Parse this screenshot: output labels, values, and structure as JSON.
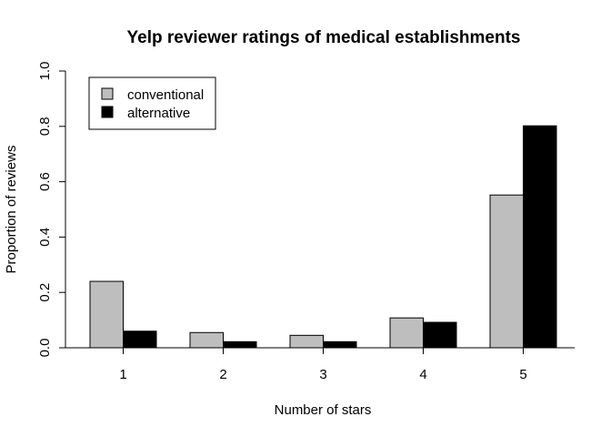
{
  "chart_data": {
    "type": "bar",
    "title": "Yelp reviewer ratings of medical establishments",
    "xlabel": "Number of stars",
    "ylabel": "Proportion of reviews",
    "categories": [
      "1",
      "2",
      "3",
      "4",
      "5"
    ],
    "series": [
      {
        "name": "conventional",
        "color": "#bebebe",
        "values": [
          0.24,
          0.055,
          0.045,
          0.108,
          0.552
        ]
      },
      {
        "name": "alternative",
        "color": "#000000",
        "values": [
          0.06,
          0.022,
          0.022,
          0.092,
          0.802
        ]
      }
    ],
    "ylim": [
      0,
      1
    ],
    "yticks": [
      "0.0",
      "0.2",
      "0.4",
      "0.6",
      "0.8",
      "1.0"
    ],
    "legend_position": "top-left",
    "grid": false
  }
}
